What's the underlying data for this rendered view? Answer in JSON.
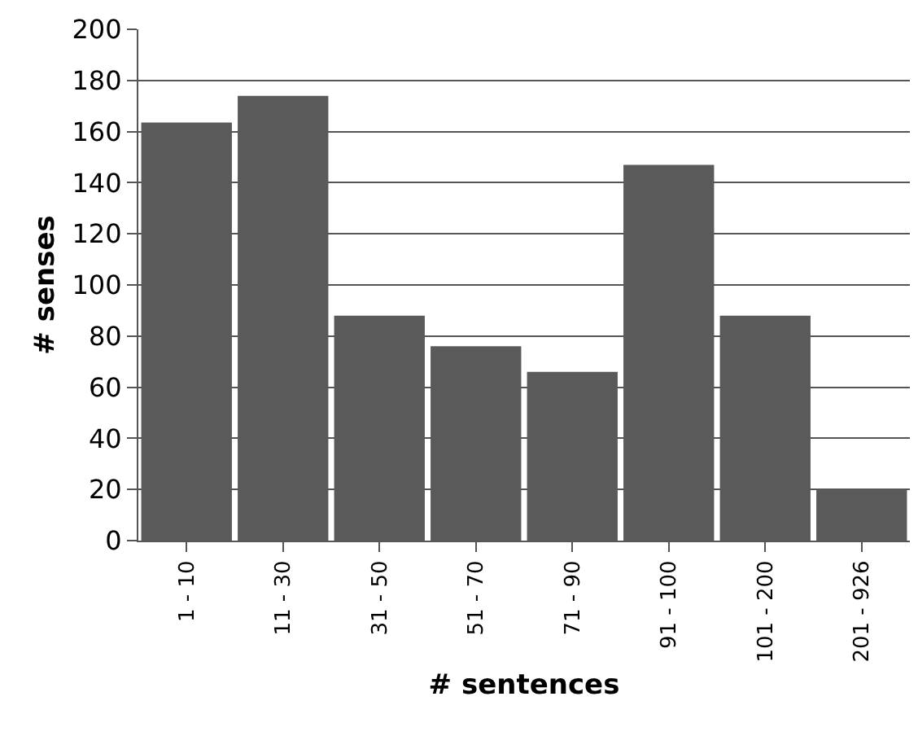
{
  "chart_data": {
    "type": "bar",
    "xlabel": "# sentences",
    "ylabel": "# senses",
    "categories": [
      "1 - 10",
      "11 - 30",
      "31 - 50",
      "51 - 70",
      "71 - 90",
      "91 - 100",
      "101 - 200",
      "201 - 926"
    ],
    "values": [
      163.5,
      174,
      88,
      76,
      66,
      147,
      88,
      20
    ],
    "color": "#5a5a5a",
    "ylim": [
      0,
      200
    ],
    "yticks": [
      0,
      20,
      40,
      60,
      80,
      100,
      120,
      140,
      160,
      180,
      200
    ],
    "grid": "y",
    "legend": false
  }
}
